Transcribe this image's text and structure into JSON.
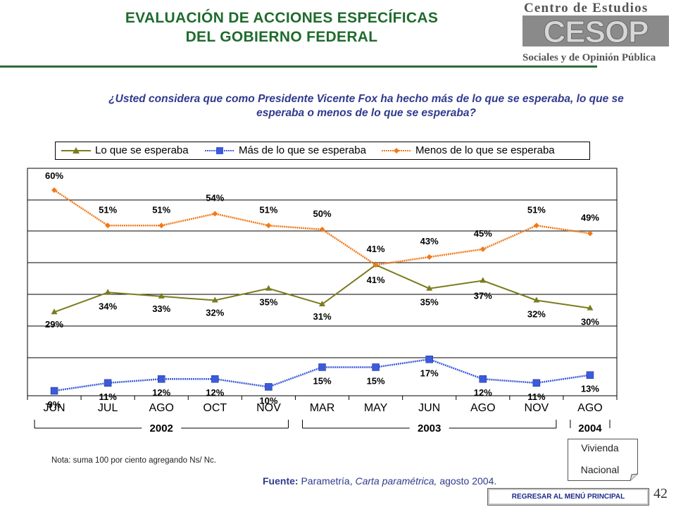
{
  "header": {
    "title_line1": "EVALUACIÓN DE ACCIONES ESPECÍFICAS",
    "title_line2": "DEL GOBIERNO FEDERAL"
  },
  "logo": {
    "top_text": "Centro de Estudios",
    "mark_text": "CESOP",
    "bottom_text": "Sociales y de Opinión Pública"
  },
  "question": {
    "line1": "¿Usted considera que como Presidente Vicente Fox ha hecho más de lo que se  esperaba, lo que se",
    "line2": "esperaba o menos de lo que se esperaba?"
  },
  "chart_data": {
    "type": "line",
    "categories": [
      "JUN",
      "JUL",
      "AGO",
      "OCT",
      "NOV",
      "MAR",
      "MAY",
      "JUN",
      "AGO",
      "NOV",
      "AGO"
    ],
    "series": [
      {
        "name": "Lo que se esperaba",
        "color": "#7b7b1e",
        "marker": "triangle",
        "values": [
          29,
          34,
          33,
          32,
          35,
          31,
          41,
          35,
          37,
          32,
          30
        ],
        "labels": [
          "29%",
          "34%",
          "33%",
          "32%",
          "35%",
          "31%",
          "41%",
          "35%",
          "37%",
          "32%",
          "30%"
        ]
      },
      {
        "name": "Más de lo que se esperaba",
        "color": "#3b5bdb",
        "marker": "square",
        "values": [
          9,
          11,
          12,
          12,
          10,
          15,
          15,
          17,
          12,
          11,
          13
        ],
        "labels": [
          "9%",
          "11%",
          "12%",
          "12%",
          "10%",
          "15%",
          "15%",
          "17%",
          "12%",
          "11%",
          "13%"
        ]
      },
      {
        "name": "Menos de lo que se esperaba",
        "color": "#f07a1a",
        "marker": "diamond",
        "values": [
          60,
          51,
          51,
          54,
          51,
          50,
          41,
          43,
          45,
          51,
          49
        ],
        "labels": [
          "60%",
          "51%",
          "51%",
          "54%",
          "51%",
          "50%",
          "41%",
          "43%",
          "45%",
          "51%",
          "49%"
        ]
      }
    ],
    "year_groups": [
      {
        "label": "2002",
        "from": 0,
        "to": 4
      },
      {
        "label": "2003",
        "from": 5,
        "to": 9
      },
      {
        "label": "2004",
        "from": 10,
        "to": 10
      }
    ],
    "ylim": [
      0,
      70
    ],
    "grid": true,
    "legend_position": "top"
  },
  "footer": {
    "nota": "Nota: suma 100 por ciento agregando Ns/ Nc.",
    "fuente_label": "Fuente:",
    "fuente_source": "Parametría,",
    "fuente_publication": "Carta paramétrica,",
    "fuente_date": "agosto 2004.",
    "vivienda_line1": "Vivienda",
    "vivienda_line2": "Nacional",
    "page_number": "42",
    "menu_button": "REGRESAR AL MENÚ PRINCIPAL"
  }
}
